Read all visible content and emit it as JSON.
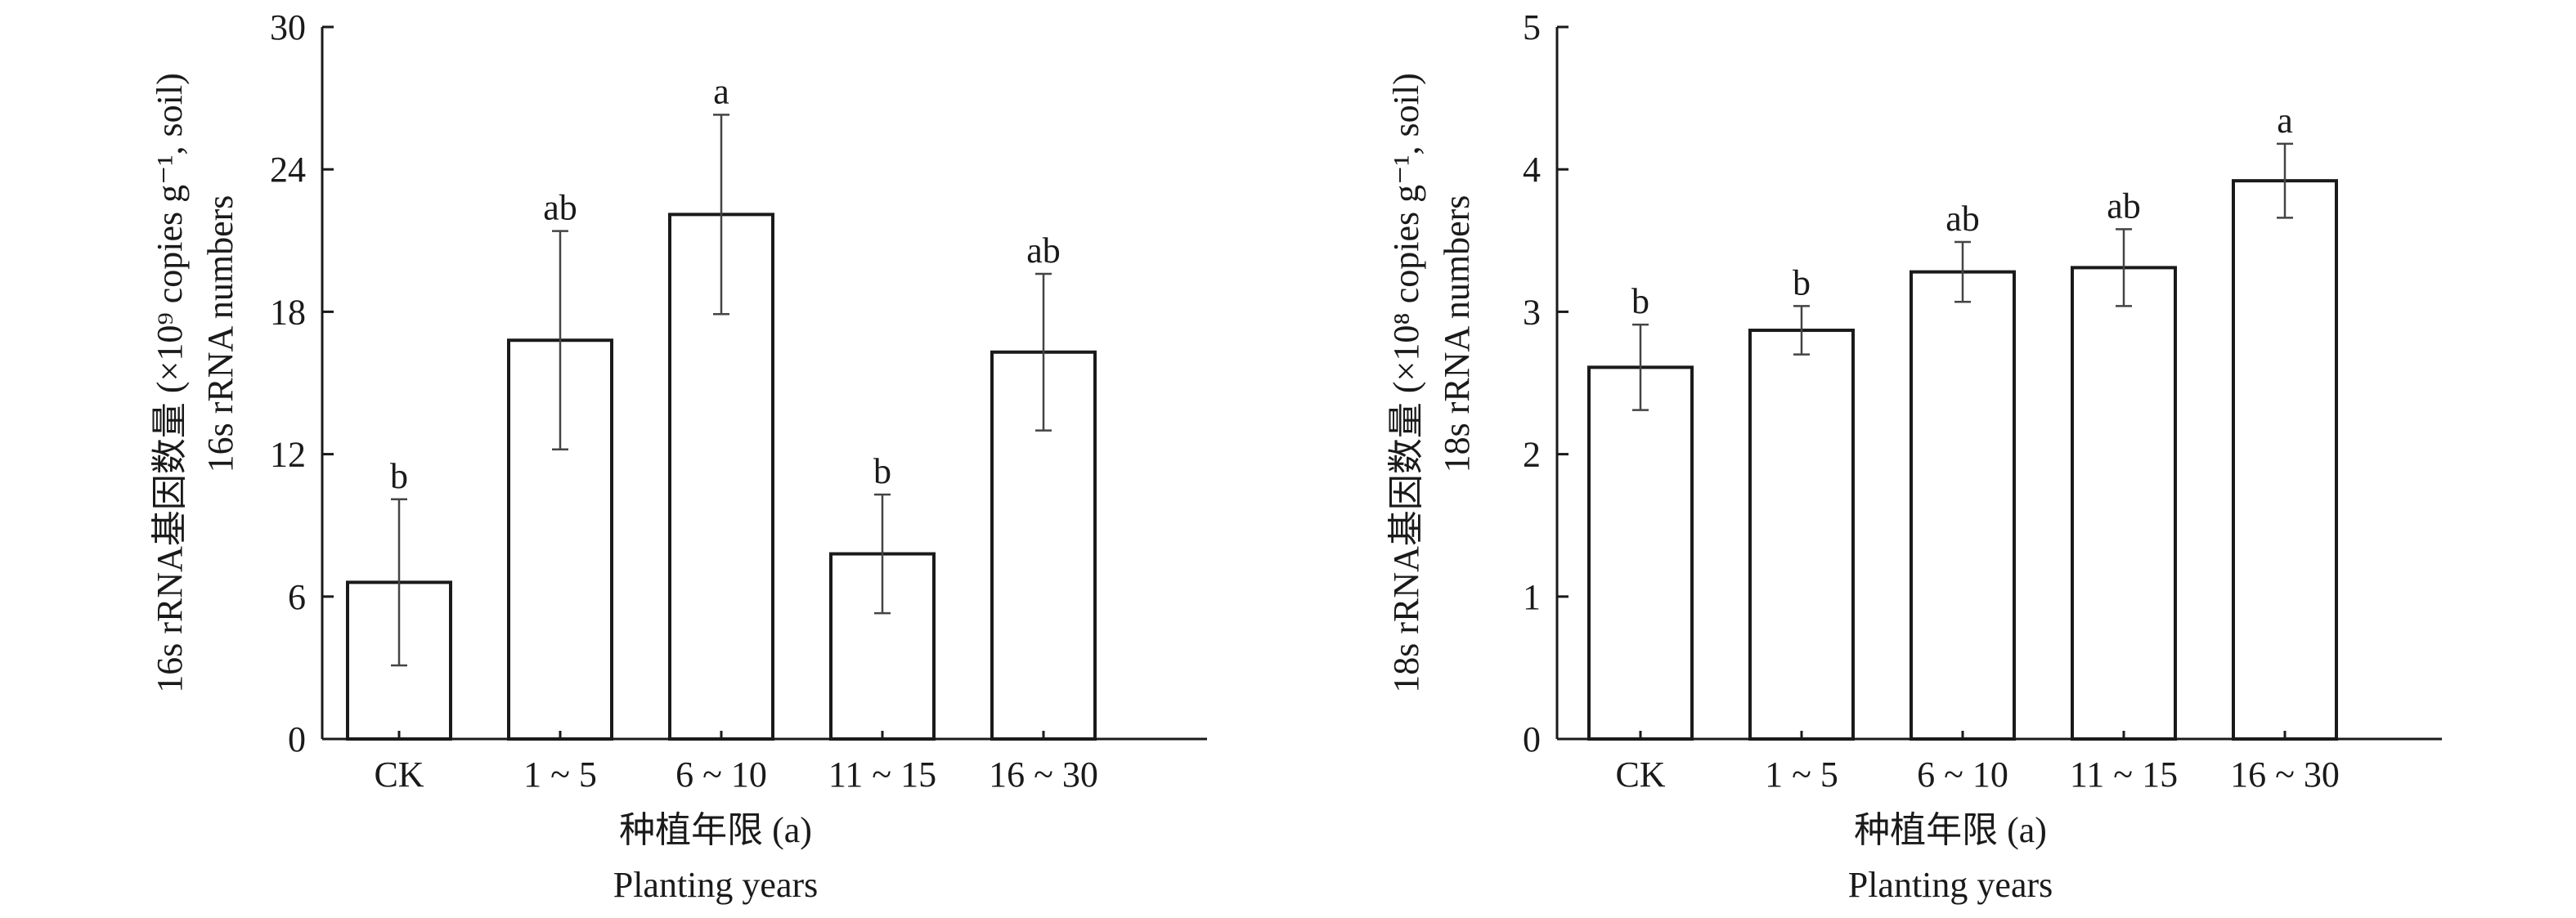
{
  "chart_data": [
    {
      "type": "bar",
      "categories": [
        "CK",
        "1 ~ 5",
        "6 ~ 10",
        "11 ~ 15",
        "16 ~ 30"
      ],
      "values": [
        6.6,
        16.8,
        22.1,
        7.8,
        16.3
      ],
      "errors": [
        3.5,
        4.6,
        4.2,
        2.5,
        3.3
      ],
      "significance": [
        "b",
        "ab",
        "a",
        "b",
        "ab"
      ],
      "ylim": [
        0,
        30
      ],
      "yticks": [
        "0",
        "6",
        "12",
        "18",
        "24",
        "30"
      ],
      "ylabel_cn": "16s rRNA基因数量 (×10⁹ copies g⁻¹, soil)",
      "ylabel_en": "16s rRNA numbers",
      "xlabel_cn": "种植年限 (a)",
      "xlabel_en": "Planting years"
    },
    {
      "type": "bar",
      "categories": [
        "CK",
        "1 ~ 5",
        "6 ~ 10",
        "11 ~ 15",
        "16 ~ 30"
      ],
      "values": [
        2.61,
        2.87,
        3.28,
        3.31,
        3.92
      ],
      "errors": [
        0.3,
        0.17,
        0.21,
        0.27,
        0.26
      ],
      "significance": [
        "b",
        "b",
        "ab",
        "ab",
        "a"
      ],
      "ylim": [
        0,
        5
      ],
      "yticks": [
        "0",
        "1",
        "2",
        "3",
        "4",
        "5"
      ],
      "ylabel_cn": "18s rRNA基因数量 (×10⁸ copies g⁻¹, soil)",
      "ylabel_en": "18s rRNA numbers",
      "xlabel_cn": "种植年限 (a)",
      "xlabel_en": "Planting years"
    }
  ]
}
